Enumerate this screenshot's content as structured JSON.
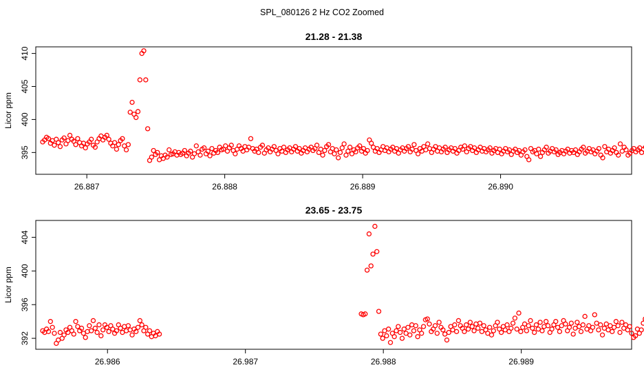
{
  "page_title": "SPL_080126  2 Hz CO2 Zoomed",
  "chart_data": [
    {
      "type": "scatter",
      "title": "21.28 - 21.38",
      "xlabel": "",
      "ylabel": "Licor ppm",
      "xlim": [
        26.88663,
        26.89095
      ],
      "ylim": [
        391.7,
        411.0
      ],
      "xticks": [
        26.887,
        26.888,
        26.889,
        26.89
      ],
      "xtick_labels": [
        "26.887",
        "26.888",
        "26.889",
        "26.890"
      ],
      "yticks": [
        395,
        400,
        405,
        410
      ],
      "ytick_labels": [
        "395",
        "400",
        "405",
        "410"
      ],
      "marker_color": "#ff0000",
      "series": [
        {
          "name": "CO2",
          "description": "2 Hz points; background ~395 ppm with a spike near 26.8872",
          "x_start": 26.88668,
          "x_step": 1.41e-05,
          "y": [
            396.6,
            396.9,
            397.3,
            397.1,
            396.4,
            396.8,
            396.1,
            397.0,
            396.5,
            395.9,
            396.9,
            397.2,
            396.3,
            396.8,
            397.6,
            397.0,
            396.7,
            396.2,
            397.1,
            396.5,
            396.0,
            396.4,
            395.7,
            396.3,
            396.6,
            397.0,
            396.1,
            395.8,
            396.6,
            397.1,
            397.5,
            396.9,
            397.3,
            397.6,
            397.0,
            396.4,
            396.0,
            396.5,
            395.5,
            396.2,
            396.8,
            397.1,
            396.0,
            395.4,
            396.2,
            401.1,
            402.6,
            400.8,
            400.3,
            401.2,
            406.0,
            410.0,
            410.4,
            406.0,
            398.6,
            393.8,
            394.3,
            395.3,
            394.7,
            395.0,
            393.9,
            394.5,
            394.1,
            394.6,
            394.3,
            395.4,
            394.7,
            394.8,
            395.1,
            394.6,
            395.0,
            394.7,
            394.9,
            395.3,
            394.5,
            394.9,
            395.2,
            394.3,
            394.8,
            396.0,
            395.1,
            394.6,
            395.5,
            395.7,
            394.8,
            395.2,
            394.5,
            395.6,
            394.9,
            395.3,
            395.0,
            395.8,
            395.4,
            395.5,
            396.0,
            395.2,
            395.7,
            396.1,
            395.3,
            394.8,
            395.5,
            396.0,
            395.6,
            395.2,
            395.9,
            395.4,
            395.8,
            397.1,
            395.6,
            395.2,
            395.5,
            395.0,
            395.8,
            396.1,
            394.9,
            395.4,
            395.7,
            395.1,
            395.5,
            395.9,
            395.3,
            394.8,
            395.6,
            395.2,
            395.8,
            395.0,
            395.4,
            395.7,
            395.1,
            395.5,
            395.9,
            395.2,
            395.6,
            394.9,
            395.3,
            395.7,
            395.1,
            395.5,
            395.8,
            395.3,
            395.6,
            396.1,
            395.0,
            395.5,
            394.6,
            395.3,
            395.9,
            396.2,
            395.1,
            395.6,
            394.8,
            395.4,
            394.2,
            395.0,
            395.7,
            396.3,
            394.6,
            395.2,
            395.8,
            394.8,
            395.4,
            395.1,
            395.7,
            396.0,
            395.2,
            395.6,
            394.9,
            395.3,
            396.9,
            396.4,
            395.8,
            395.2,
            395.6,
            395.0,
            395.4,
            395.9,
            395.3,
            395.7,
            395.1,
            395.5,
            395.8,
            395.2,
            395.6,
            394.9,
            395.4,
            395.7,
            395.2,
            395.6,
            395.9,
            395.1,
            395.5,
            396.2,
            395.3,
            394.8,
            395.6,
            395.2,
            395.9,
            395.4,
            396.3,
            395.6,
            395.0,
            395.5,
            395.9,
            395.2,
            395.7,
            395.1,
            395.5,
            395.8,
            395.0,
            395.4,
            395.7,
            395.2,
            395.6,
            394.9,
            395.3,
            395.8,
            395.5,
            396.0,
            395.1,
            395.6,
            395.9,
            395.3,
            395.7,
            395.0,
            395.4,
            395.8,
            395.2,
            395.6,
            395.1,
            395.4,
            395.7,
            394.9,
            395.3,
            395.6,
            395.0,
            395.5,
            394.8,
            395.2,
            395.6,
            395.1,
            395.4,
            394.7,
            395.2,
            395.5,
            395.0,
            395.3,
            394.6,
            395.1,
            395.4,
            394.4,
            393.9,
            395.6,
            395.1,
            395.3,
            394.8,
            395.5,
            394.4,
            395.0,
            395.4,
            395.8,
            394.9,
            395.2,
            395.6,
            395.1,
            395.4,
            394.7,
            395.0,
            395.3,
            394.8,
            395.2,
            395.5,
            394.9,
            395.3,
            395.0,
            395.4,
            394.7,
            395.1,
            395.5,
            395.8,
            394.9,
            395.2,
            395.6,
            395.1,
            395.4,
            394.8,
            395.2,
            395.6,
            394.6,
            394.2,
            395.9,
            395.1,
            395.5,
            394.9,
            395.3,
            395.7,
            395.0,
            394.6,
            396.3,
            395.2,
            395.8,
            395.4,
            394.6,
            394.9,
            395.3,
            395.6,
            395.1,
            395.4,
            395.7,
            395.0,
            395.5,
            395.8,
            395.2,
            395.6,
            394.8,
            395.3,
            395.7,
            395.1,
            395.4,
            395.9,
            395.2,
            395.6,
            394.9,
            395.3,
            395.8,
            395.1,
            395.5,
            394.7,
            395.2,
            395.6,
            394.5,
            395.0,
            395.4,
            394.8,
            395.2,
            395.6,
            394.9,
            395.3,
            397.0,
            395.6,
            395.1,
            395.4,
            394.8,
            395.2,
            395.7,
            394.6,
            395.0,
            395.4,
            394.9,
            395.2,
            394.3,
            395.0,
            395.6,
            395.1,
            394.7,
            395.3,
            394.8,
            395.2,
            394.6,
            397.2,
            395.0,
            392.4,
            393.6,
            396.0,
            395.1,
            395.7,
            395.4,
            395.8,
            395.2,
            394.5
          ]
        }
      ]
    },
    {
      "type": "scatter",
      "title": "23.65 - 23.75",
      "xlabel": "",
      "ylabel": "Licor ppm",
      "xlim": [
        26.98548,
        26.9898
      ],
      "ylim": [
        390.7,
        406.0
      ],
      "xticks": [
        26.986,
        26.987,
        26.988,
        26.989
      ],
      "xtick_labels": [
        "26.986",
        "26.987",
        "26.988",
        "26.989"
      ],
      "yticks": [
        392,
        396,
        400,
        404
      ],
      "ytick_labels": [
        "392",
        "396",
        "400",
        "404"
      ],
      "marker_color": "#ff0000",
      "series": [
        {
          "name": "CO2 segment 1",
          "x_start": 26.98553,
          "x_step": 1.41e-05,
          "y": [
            392.9,
            392.7,
            393.1,
            392.8,
            394.0,
            393.3,
            392.6,
            391.4,
            391.8,
            392.7,
            392.0,
            392.4,
            393.0,
            392.7,
            393.3,
            392.9,
            392.5,
            394.0,
            393.4,
            392.9,
            393.2,
            392.6,
            392.1,
            392.8,
            393.5,
            392.9,
            394.1,
            393.2,
            392.7,
            393.6,
            392.3,
            393.0,
            393.6,
            393.3,
            392.8,
            393.5,
            393.1,
            392.6,
            392.9,
            393.6,
            393.2,
            392.7,
            393.4,
            392.9,
            393.5,
            393.0,
            392.4,
            393.1,
            392.8,
            393.3,
            394.1,
            393.6,
            392.9,
            393.3,
            392.5,
            392.9,
            392.2,
            392.6,
            392.3,
            392.8,
            392.5
          ]
        },
        {
          "name": "CO2 segment 2",
          "description": "spike near 26.9879 then background ~393 ppm",
          "x_start": 26.98784,
          "x_step": 1.41e-05,
          "y": [
            394.9,
            394.8,
            394.9,
            400.1,
            404.4,
            400.6,
            402.0,
            405.3,
            402.3,
            395.2,
            392.5,
            392.0,
            392.9,
            392.3,
            393.1,
            391.5,
            392.6,
            392.2,
            392.9,
            393.4,
            392.7,
            392.0,
            393.1,
            392.6,
            393.3,
            392.4,
            393.6,
            392.9,
            393.5,
            392.2,
            393.0,
            392.6,
            393.4,
            394.2,
            394.3,
            393.7,
            392.8,
            393.1,
            393.5,
            392.6,
            393.9,
            393.3,
            393.0,
            392.5,
            391.8,
            392.7,
            393.4,
            393.0,
            393.6,
            392.8,
            394.1,
            393.5,
            393.2,
            392.8,
            393.6,
            393.1,
            393.9,
            393.4,
            392.9,
            393.7,
            393.2,
            393.8,
            392.8,
            393.5,
            393.0,
            392.6,
            393.3,
            392.4,
            392.9,
            393.5,
            393.9,
            393.1,
            392.7,
            393.4,
            393.0,
            393.6,
            392.8,
            393.2,
            393.8,
            394.4,
            393.1,
            395.0,
            392.8,
            393.3,
            393.7,
            392.9,
            393.5,
            394.1,
            393.2,
            392.7,
            393.6,
            393.1,
            393.9,
            392.9,
            393.4,
            394.0,
            393.5,
            392.7,
            393.1,
            393.6,
            394.0,
            393.3,
            392.8,
            393.5,
            394.1,
            393.7,
            392.9,
            393.3,
            393.8,
            392.5,
            393.2,
            393.9,
            393.4,
            392.8,
            393.6,
            394.6,
            393.1,
            393.5,
            392.9,
            393.3,
            394.8,
            393.8,
            393.0,
            393.6,
            392.4,
            393.2,
            393.7,
            393.0,
            393.5,
            392.8,
            393.3,
            394.0,
            393.5,
            392.7,
            393.9,
            393.2,
            393.6,
            393.0,
            393.4,
            392.6,
            392.1,
            392.3,
            393.1,
            392.6,
            393.0,
            393.8,
            394.3,
            393.2,
            392.5,
            392.8,
            393.4,
            393.6,
            392.8,
            393.2,
            393.0,
            394.3,
            393.6,
            393.4,
            392.9,
            393.1,
            393.6,
            392.4,
            392.9,
            393.3,
            392.7,
            393.5,
            393.2,
            394.2,
            393.4
          ]
        }
      ]
    }
  ]
}
